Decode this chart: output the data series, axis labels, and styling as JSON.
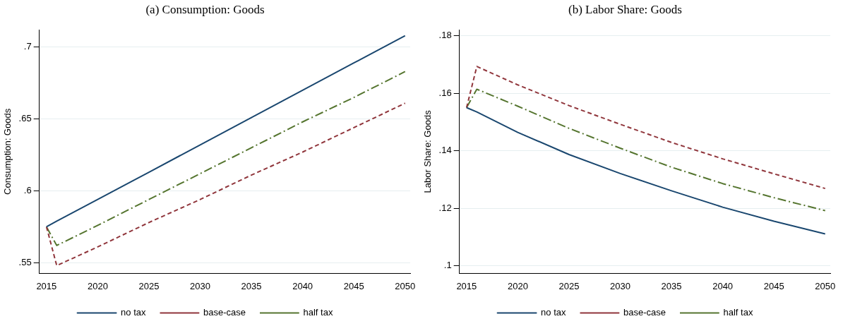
{
  "chart_data": [
    {
      "type": "line",
      "title": "(a) Consumption: Goods",
      "ylabel": "Consumption: Goods",
      "x": [
        2015,
        2016,
        2020,
        2025,
        2030,
        2035,
        2040,
        2045,
        2050
      ],
      "xlim": [
        2014.3,
        2050.5
      ],
      "xticks": [
        2015,
        2020,
        2025,
        2030,
        2035,
        2040,
        2045,
        2050
      ],
      "ylim": [
        0.5426,
        0.712
      ],
      "yticks": [
        {
          "value": 0.55,
          "label": ".55"
        },
        {
          "value": 0.6,
          "label": ".6"
        },
        {
          "value": 0.65,
          "label": ".65"
        },
        {
          "value": 0.7,
          "label": ".7"
        }
      ],
      "grid": "y",
      "legend": "bottom",
      "marker": "none",
      "series": [
        {
          "name": "no tax",
          "color": "#1a476f",
          "line_style": "solid",
          "values": [
            0.575,
            0.579,
            0.594,
            0.613,
            0.632,
            0.651,
            0.67,
            0.689,
            0.708
          ]
        },
        {
          "name": "base-case",
          "color": "#90353b",
          "line_style": "dashed",
          "values": [
            0.575,
            0.548,
            0.561,
            0.578,
            0.594,
            0.611,
            0.627,
            0.644,
            0.661
          ]
        },
        {
          "name": "half tax",
          "color": "#55752f",
          "line_style": "dashdot",
          "values": [
            0.575,
            0.562,
            0.576,
            0.594,
            0.612,
            0.63,
            0.648,
            0.665,
            0.683
          ]
        }
      ]
    },
    {
      "type": "line",
      "title": "(b) Labor Share: Goods",
      "ylabel": "Labor Share: Goods",
      "x": [
        2015,
        2016,
        2020,
        2025,
        2030,
        2035,
        2040,
        2045,
        2050
      ],
      "xlim": [
        2014.3,
        2050.5
      ],
      "xticks": [
        2015,
        2020,
        2025,
        2030,
        2035,
        2040,
        2045,
        2050
      ],
      "ylim": [
        0.0974,
        0.182
      ],
      "yticks": [
        {
          "value": 0.1,
          "label": ".1"
        },
        {
          "value": 0.12,
          "label": ".12"
        },
        {
          "value": 0.14,
          "label": ".14"
        },
        {
          "value": 0.16,
          "label": ".16"
        },
        {
          "value": 0.18,
          "label": ".18"
        }
      ],
      "grid": "y",
      "legend": "bottom",
      "marker": "none",
      "series": [
        {
          "name": "no tax",
          "color": "#1a476f",
          "line_style": "solid",
          "values": [
            0.155,
            0.1535,
            0.1464,
            0.1387,
            0.1321,
            0.1261,
            0.1204,
            0.1155,
            0.1111
          ]
        },
        {
          "name": "base-case",
          "color": "#90353b",
          "line_style": "dashed",
          "values": [
            0.155,
            0.1693,
            0.1629,
            0.1557,
            0.1492,
            0.1429,
            0.1372,
            0.132,
            0.1269
          ]
        },
        {
          "name": "half tax",
          "color": "#55752f",
          "line_style": "dashdot",
          "values": [
            0.155,
            0.1614,
            0.1555,
            0.1478,
            0.1409,
            0.1343,
            0.1286,
            0.1237,
            0.1192
          ]
        }
      ]
    }
  ]
}
